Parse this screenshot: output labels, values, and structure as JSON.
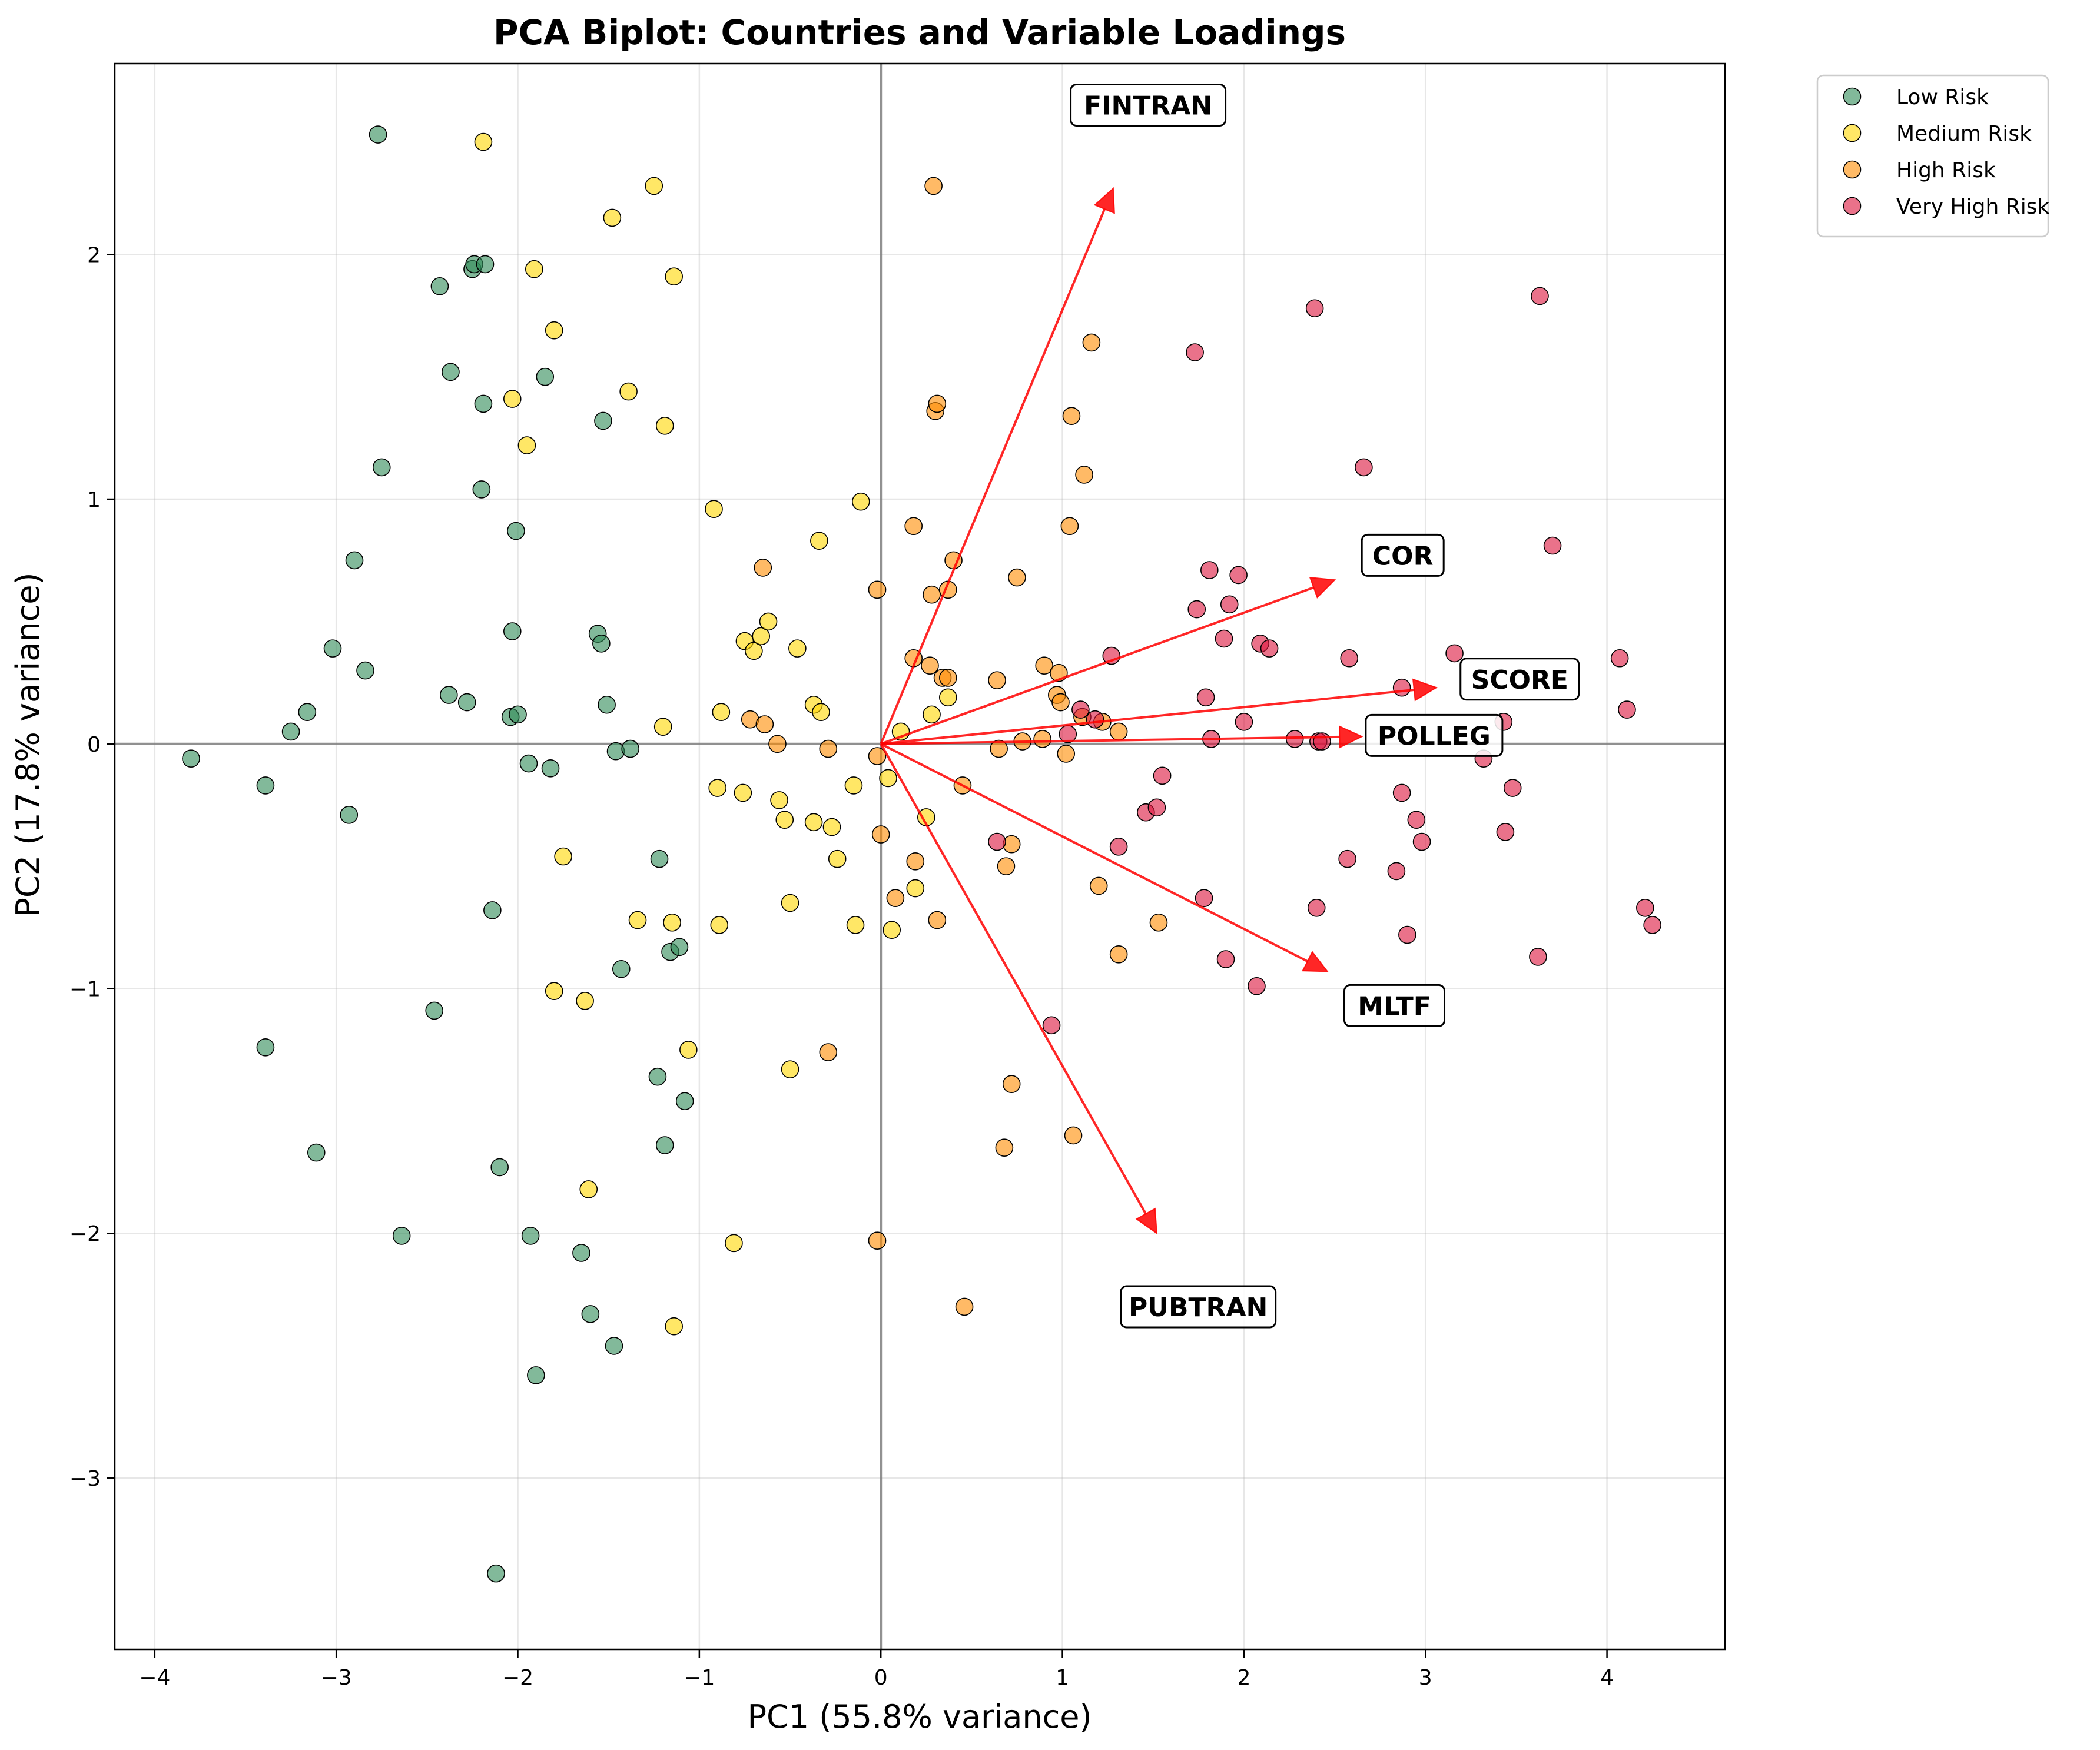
{
  "chart_data": {
    "type": "scatter",
    "title": "PCA Biplot: Countries and Variable Loadings",
    "xlabel": "PC1 (55.8% variance)",
    "ylabel": "PC2 (17.8% variance)",
    "xlim": [
      -4.22,
      4.65
    ],
    "ylim": [
      -3.7,
      2.78
    ],
    "xticks": [
      -4,
      -3,
      -2,
      -1,
      0,
      1,
      2,
      3,
      4
    ],
    "yticks": [
      -3,
      -2,
      -1,
      0,
      1,
      2
    ],
    "xtick_labels": [
      "−4",
      "−3",
      "−2",
      "−1",
      "0",
      "1",
      "2",
      "3",
      "4"
    ],
    "ytick_labels": [
      "−3",
      "−2",
      "−1",
      "0",
      "1",
      "2"
    ],
    "grid": true,
    "legend_position": "outside top-right",
    "series": [
      {
        "name": "Low Risk",
        "color": "#2e8b57",
        "points": [
          [
            -3.8,
            -0.06
          ],
          [
            -3.39,
            -0.17
          ],
          [
            -3.39,
            -1.24
          ],
          [
            -3.16,
            0.13
          ],
          [
            -3.25,
            0.05
          ],
          [
            -3.11,
            -1.67
          ],
          [
            -3.02,
            0.39
          ],
          [
            -2.93,
            -0.29
          ],
          [
            -2.9,
            0.75
          ],
          [
            -2.84,
            0.3
          ],
          [
            -2.77,
            2.49
          ],
          [
            -2.75,
            1.13
          ],
          [
            -2.64,
            -2.01
          ],
          [
            -2.46,
            -1.09
          ],
          [
            -2.43,
            1.87
          ],
          [
            -2.38,
            0.2
          ],
          [
            -2.37,
            1.52
          ],
          [
            -2.28,
            0.17
          ],
          [
            -2.25,
            1.94
          ],
          [
            -2.24,
            1.96
          ],
          [
            -2.2,
            1.04
          ],
          [
            -2.19,
            1.39
          ],
          [
            -2.18,
            1.96
          ],
          [
            -2.14,
            -0.68
          ],
          [
            -2.12,
            -3.39
          ],
          [
            -2.1,
            -1.73
          ],
          [
            -2.04,
            0.11
          ],
          [
            -2.03,
            0.46
          ],
          [
            -2.01,
            0.87
          ],
          [
            -2.0,
            0.12
          ],
          [
            -1.94,
            -0.08
          ],
          [
            -1.93,
            -2.01
          ],
          [
            -1.9,
            -2.58
          ],
          [
            -1.85,
            1.5
          ],
          [
            -1.82,
            -0.1
          ],
          [
            -1.65,
            -2.08
          ],
          [
            -1.6,
            -2.33
          ],
          [
            -1.56,
            0.45
          ],
          [
            -1.54,
            0.41
          ],
          [
            -1.53,
            1.32
          ],
          [
            -1.51,
            0.16
          ],
          [
            -1.47,
            -2.46
          ],
          [
            -1.46,
            -0.03
          ],
          [
            -1.43,
            -0.92
          ],
          [
            -1.38,
            -0.02
          ],
          [
            -1.23,
            -1.36
          ],
          [
            -1.22,
            -0.47
          ],
          [
            -1.19,
            -1.64
          ],
          [
            -1.16,
            -0.85
          ],
          [
            -1.11,
            -0.83
          ],
          [
            -1.08,
            -1.46
          ]
        ]
      },
      {
        "name": "Medium Risk",
        "color": "#ffd700",
        "points": [
          [
            -2.19,
            2.46
          ],
          [
            -2.03,
            1.41
          ],
          [
            -1.95,
            1.22
          ],
          [
            -1.91,
            1.94
          ],
          [
            -1.8,
            1.69
          ],
          [
            -1.8,
            -1.01
          ],
          [
            -1.75,
            -0.46
          ],
          [
            -1.63,
            -1.05
          ],
          [
            -1.61,
            -1.82
          ],
          [
            -1.48,
            2.15
          ],
          [
            -1.39,
            1.44
          ],
          [
            -1.34,
            -0.72
          ],
          [
            -1.25,
            2.28
          ],
          [
            -1.2,
            0.07
          ],
          [
            -1.19,
            1.3
          ],
          [
            -1.15,
            -0.73
          ],
          [
            -1.14,
            1.91
          ],
          [
            -1.14,
            -2.38
          ],
          [
            -1.06,
            -1.25
          ],
          [
            -0.92,
            0.96
          ],
          [
            -0.9,
            -0.18
          ],
          [
            -0.89,
            -0.74
          ],
          [
            -0.88,
            0.13
          ],
          [
            -0.81,
            -2.04
          ],
          [
            -0.76,
            -0.2
          ],
          [
            -0.75,
            0.42
          ],
          [
            -0.7,
            0.38
          ],
          [
            -0.66,
            0.44
          ],
          [
            -0.62,
            0.5
          ],
          [
            -0.56,
            -0.23
          ],
          [
            -0.53,
            -0.31
          ],
          [
            -0.5,
            -0.65
          ],
          [
            -0.5,
            -1.33
          ],
          [
            -0.46,
            0.39
          ],
          [
            -0.37,
            0.16
          ],
          [
            -0.37,
            -0.32
          ],
          [
            -0.34,
            0.83
          ],
          [
            -0.33,
            0.13
          ],
          [
            -0.27,
            -0.34
          ],
          [
            -0.24,
            -0.47
          ],
          [
            -0.15,
            -0.17
          ],
          [
            -0.14,
            -0.74
          ],
          [
            -0.11,
            0.99
          ],
          [
            0.04,
            -0.14
          ],
          [
            0.06,
            -0.76
          ],
          [
            0.11,
            0.05
          ],
          [
            0.19,
            -0.59
          ],
          [
            0.25,
            -0.3
          ],
          [
            0.28,
            0.12
          ],
          [
            0.37,
            0.19
          ]
        ]
      },
      {
        "name": "High Risk",
        "color": "#ff8c00",
        "points": [
          [
            -0.72,
            0.1
          ],
          [
            -0.65,
            0.72
          ],
          [
            -0.64,
            0.08
          ],
          [
            -0.57,
            0.0
          ],
          [
            -0.29,
            -0.02
          ],
          [
            -0.29,
            -1.26
          ],
          [
            -0.02,
            0.63
          ],
          [
            -0.02,
            -2.03
          ],
          [
            -0.02,
            -0.05
          ],
          [
            0.0,
            -0.37
          ],
          [
            0.08,
            -0.63
          ],
          [
            0.18,
            0.89
          ],
          [
            0.18,
            0.35
          ],
          [
            0.19,
            -0.48
          ],
          [
            0.27,
            0.32
          ],
          [
            0.28,
            0.61
          ],
          [
            0.29,
            2.28
          ],
          [
            0.3,
            1.36
          ],
          [
            0.31,
            1.39
          ],
          [
            0.31,
            -0.72
          ],
          [
            0.34,
            0.27
          ],
          [
            0.37,
            0.63
          ],
          [
            0.37,
            0.27
          ],
          [
            0.4,
            0.75
          ],
          [
            0.45,
            -0.17
          ],
          [
            0.46,
            -2.3
          ],
          [
            0.64,
            0.26
          ],
          [
            0.65,
            -0.02
          ],
          [
            0.68,
            -1.65
          ],
          [
            0.69,
            -0.5
          ],
          [
            0.72,
            -0.41
          ],
          [
            0.72,
            -1.39
          ],
          [
            0.75,
            0.68
          ],
          [
            0.78,
            0.01
          ],
          [
            0.89,
            0.02
          ],
          [
            0.9,
            0.32
          ],
          [
            0.97,
            0.2
          ],
          [
            0.98,
            0.29
          ],
          [
            0.99,
            0.17
          ],
          [
            1.02,
            -0.04
          ],
          [
            1.04,
            0.89
          ],
          [
            1.05,
            1.34
          ],
          [
            1.06,
            -1.6
          ],
          [
            1.11,
            0.11
          ],
          [
            1.12,
            1.1
          ],
          [
            1.16,
            1.64
          ],
          [
            1.2,
            -0.58
          ],
          [
            1.22,
            0.09
          ],
          [
            1.31,
            -0.86
          ],
          [
            1.31,
            0.05
          ],
          [
            1.53,
            -0.73
          ]
        ]
      },
      {
        "name": "Very High Risk",
        "color": "#dc143c",
        "points": [
          [
            0.64,
            -0.4
          ],
          [
            0.94,
            -1.15
          ],
          [
            1.03,
            0.04
          ],
          [
            1.1,
            0.14
          ],
          [
            1.18,
            0.1
          ],
          [
            1.27,
            0.36
          ],
          [
            1.31,
            -0.42
          ],
          [
            1.46,
            -0.28
          ],
          [
            1.52,
            -0.26
          ],
          [
            1.55,
            -0.13
          ],
          [
            1.73,
            1.6
          ],
          [
            1.74,
            0.55
          ],
          [
            1.78,
            -0.63
          ],
          [
            1.79,
            0.19
          ],
          [
            1.81,
            0.71
          ],
          [
            1.82,
            0.02
          ],
          [
            1.89,
            0.43
          ],
          [
            1.9,
            -0.88
          ],
          [
            1.92,
            0.57
          ],
          [
            1.97,
            0.69
          ],
          [
            2.0,
            0.09
          ],
          [
            2.07,
            -0.99
          ],
          [
            2.09,
            0.41
          ],
          [
            2.14,
            0.39
          ],
          [
            2.28,
            0.02
          ],
          [
            2.39,
            1.78
          ],
          [
            2.4,
            -0.67
          ],
          [
            2.41,
            0.01
          ],
          [
            2.43,
            0.01
          ],
          [
            2.57,
            -0.47
          ],
          [
            2.58,
            0.35
          ],
          [
            2.66,
            1.13
          ],
          [
            2.84,
            -0.52
          ],
          [
            2.87,
            -0.2
          ],
          [
            2.87,
            0.23
          ],
          [
            2.9,
            -0.78
          ],
          [
            2.95,
            -0.31
          ],
          [
            2.98,
            -0.4
          ],
          [
            3.16,
            0.37
          ],
          [
            3.32,
            -0.06
          ],
          [
            3.43,
            0.09
          ],
          [
            3.44,
            -0.36
          ],
          [
            3.48,
            -0.18
          ],
          [
            3.62,
            -0.87
          ],
          [
            3.63,
            1.83
          ],
          [
            3.7,
            0.81
          ],
          [
            4.07,
            0.35
          ],
          [
            4.11,
            0.14
          ],
          [
            4.21,
            -0.67
          ],
          [
            4.25,
            -0.74
          ]
        ]
      }
    ],
    "loadings": [
      {
        "name": "FINTRAN",
        "x": 1.28,
        "y": 2.27
      },
      {
        "name": "COR",
        "x": 2.5,
        "y": 0.67
      },
      {
        "name": "SCORE",
        "x": 3.06,
        "y": 0.23
      },
      {
        "name": "POLLEG",
        "x": 2.65,
        "y": 0.03
      },
      {
        "name": "MLTF",
        "x": 2.46,
        "y": -0.93
      },
      {
        "name": "PUBTRAN",
        "x": 1.52,
        "y": -2.0
      }
    ],
    "loading_color": "#ff0000"
  }
}
